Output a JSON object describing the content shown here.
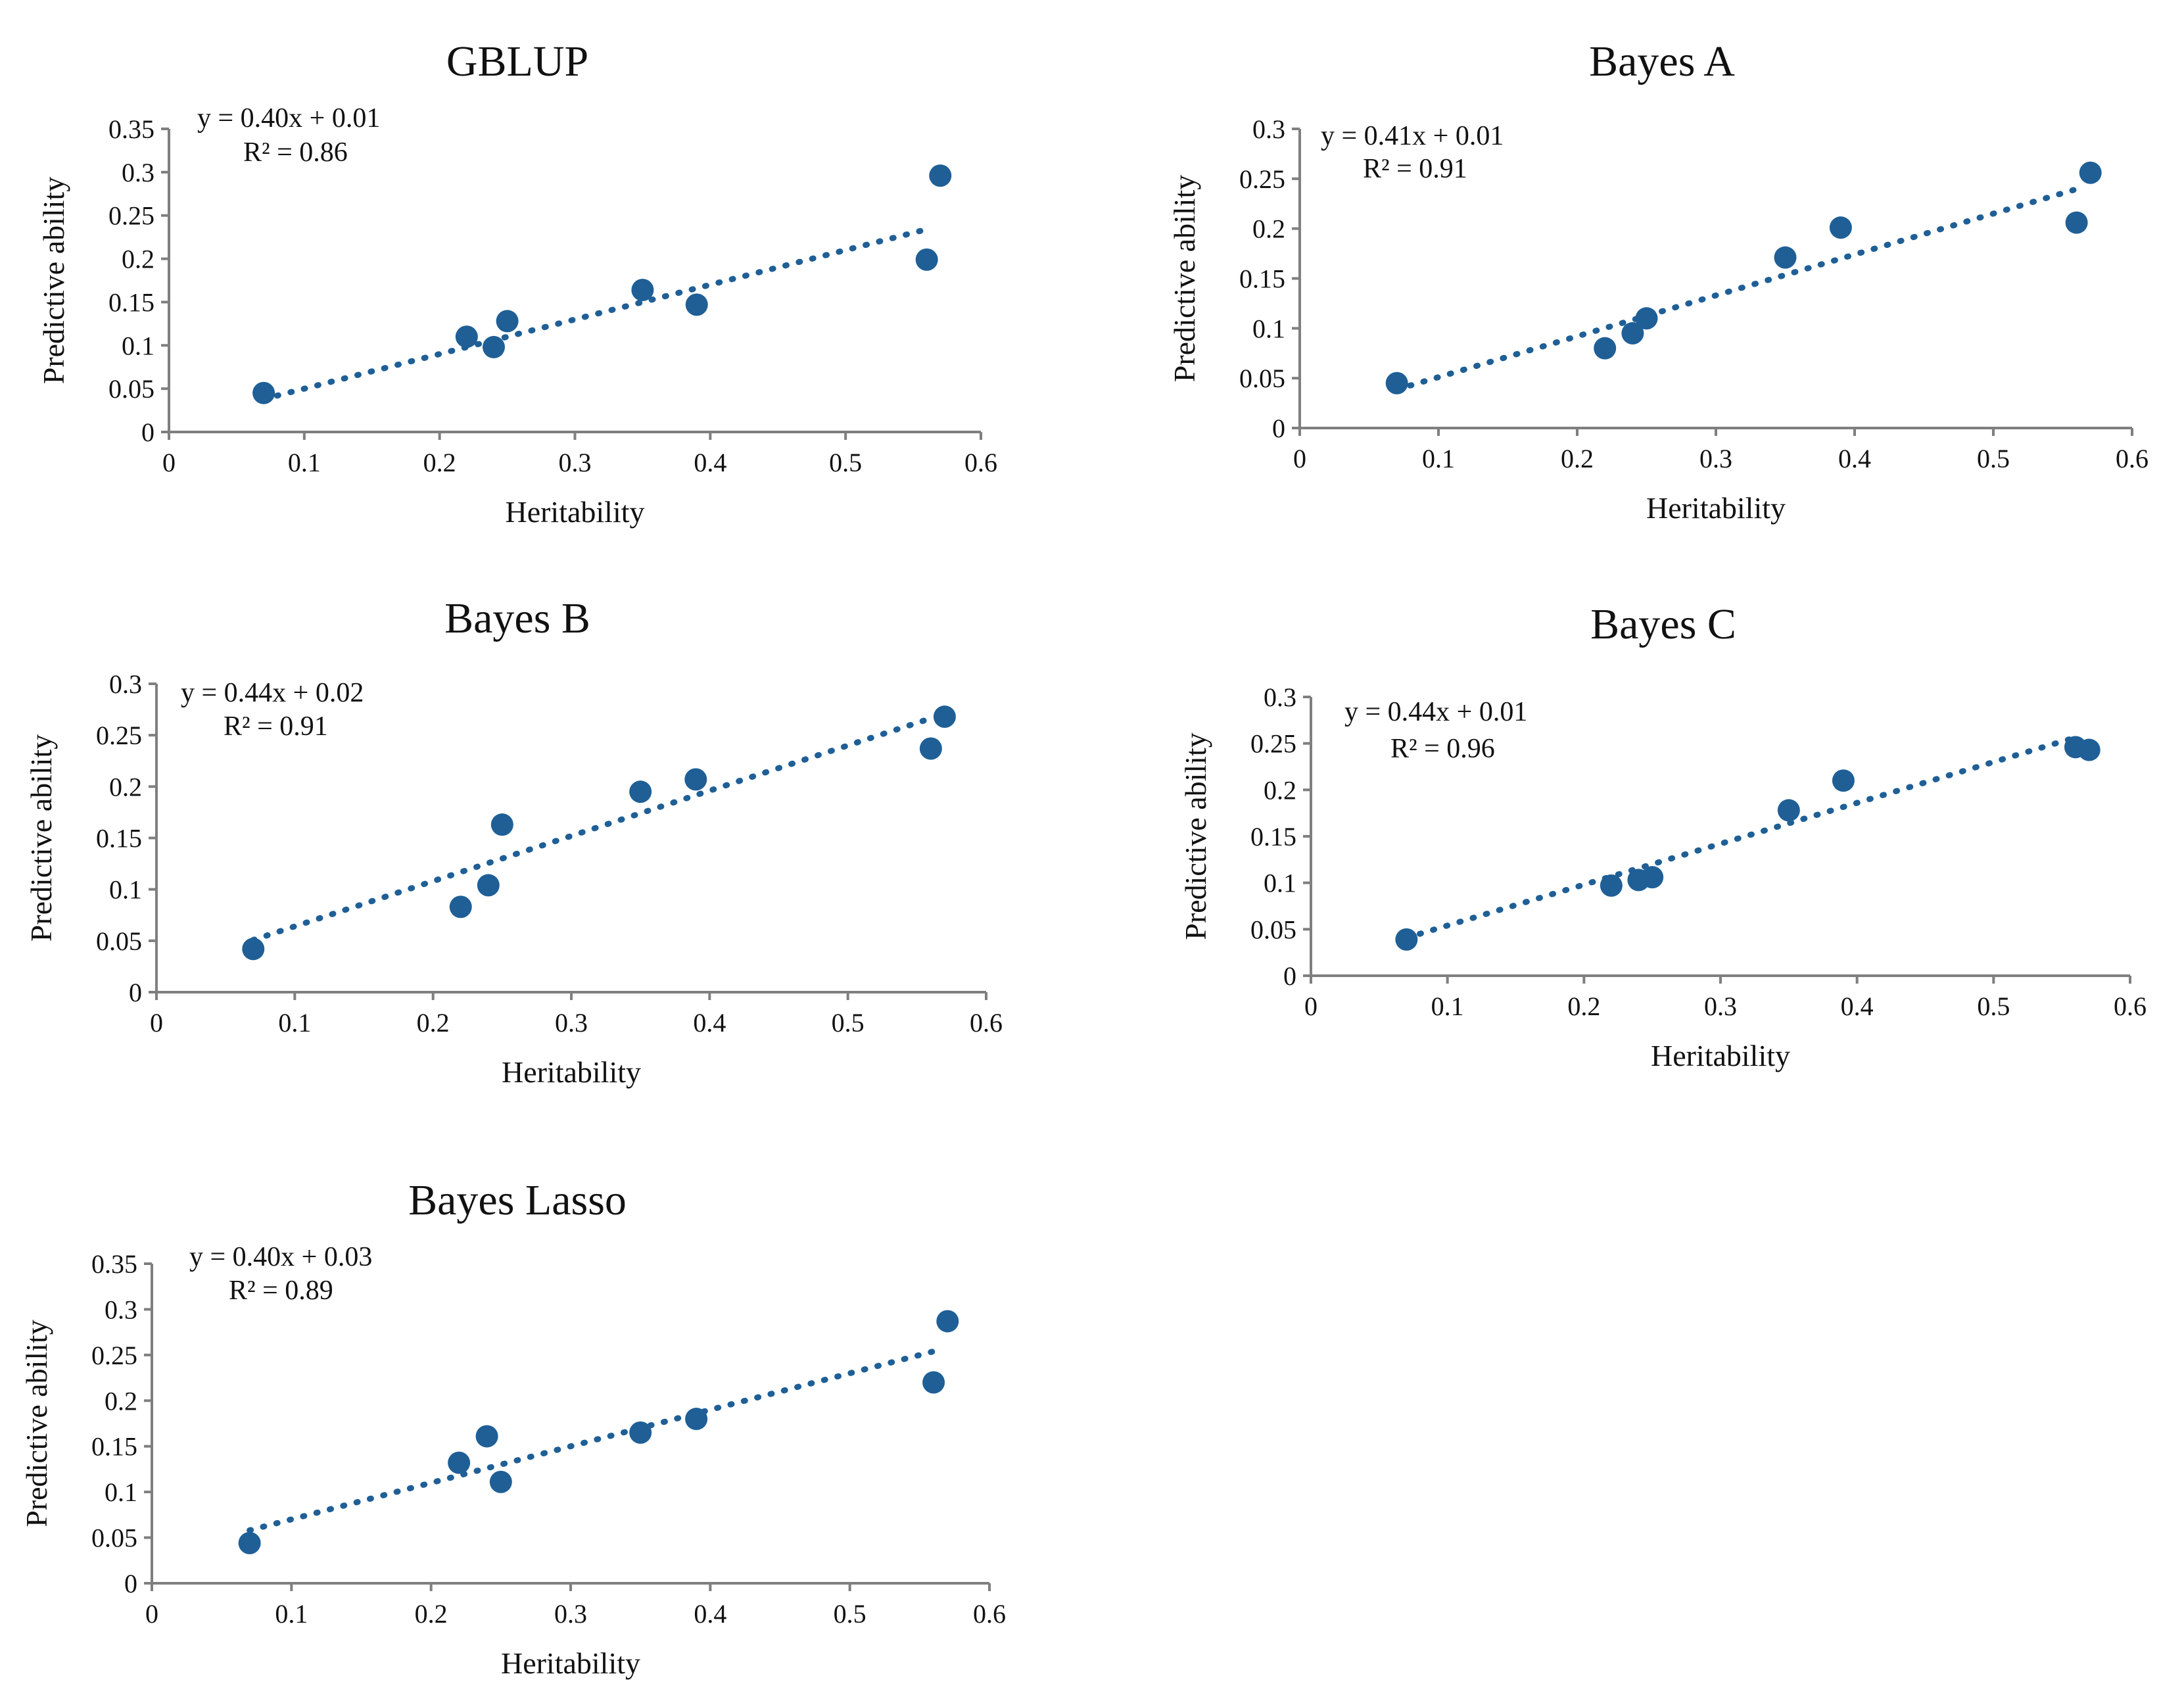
{
  "chart_data": [
    {
      "type": "scatter",
      "title": "GBLUP",
      "xlabel": "Heritability",
      "ylabel": "Predictive ability",
      "xlim": [
        0,
        0.6
      ],
      "ylim": [
        0,
        0.35
      ],
      "xticks": [
        "0",
        "0.1",
        "0.2",
        "0.3",
        "0.4",
        "0.5",
        "0.6"
      ],
      "yticks": [
        "0",
        "0.05",
        "0.1",
        "0.15",
        "0.2",
        "0.25",
        "0.3",
        "0.35"
      ],
      "points": [
        {
          "x": 0.07,
          "y": 0.045
        },
        {
          "x": 0.22,
          "y": 0.11
        },
        {
          "x": 0.24,
          "y": 0.098
        },
        {
          "x": 0.25,
          "y": 0.128
        },
        {
          "x": 0.35,
          "y": 0.164
        },
        {
          "x": 0.39,
          "y": 0.147
        },
        {
          "x": 0.56,
          "y": 0.199
        },
        {
          "x": 0.57,
          "y": 0.296
        }
      ],
      "trendline": {
        "slope": 0.4,
        "intercept": 0.01,
        "x_range": [
          0.07,
          0.56
        ]
      },
      "equation": "y = 0.40x + 0.01",
      "r_squared": "R² = 0.86"
    },
    {
      "type": "scatter",
      "title": "Bayes A",
      "xlabel": "Heritability",
      "ylabel": "Predictive ability",
      "xlim": [
        0,
        0.6
      ],
      "ylim": [
        0,
        0.3
      ],
      "xticks": [
        "0",
        "0.1",
        "0.2",
        "0.3",
        "0.4",
        "0.5",
        "0.6"
      ],
      "yticks": [
        "0",
        "0.05",
        "0.1",
        "0.15",
        "0.2",
        "0.25",
        "0.3"
      ],
      "points": [
        {
          "x": 0.07,
          "y": 0.045
        },
        {
          "x": 0.22,
          "y": 0.08
        },
        {
          "x": 0.24,
          "y": 0.095
        },
        {
          "x": 0.25,
          "y": 0.11
        },
        {
          "x": 0.35,
          "y": 0.171
        },
        {
          "x": 0.39,
          "y": 0.201
        },
        {
          "x": 0.56,
          "y": 0.206
        },
        {
          "x": 0.57,
          "y": 0.256
        }
      ],
      "trendline": {
        "slope": 0.41,
        "intercept": 0.01,
        "x_range": [
          0.07,
          0.56
        ]
      },
      "equation": "y = 0.41x + 0.01",
      "r_squared": "R² = 0.91"
    },
    {
      "type": "scatter",
      "title": "Bayes B",
      "xlabel": "Heritability",
      "ylabel": "Predictive ability",
      "xlim": [
        0,
        0.6
      ],
      "ylim": [
        0,
        0.3
      ],
      "xticks": [
        "0",
        "0.1",
        "0.2",
        "0.3",
        "0.4",
        "0.5",
        "0.6"
      ],
      "yticks": [
        "0",
        "0.05",
        "0.1",
        "0.15",
        "0.2",
        "0.25",
        "0.3"
      ],
      "points": [
        {
          "x": 0.07,
          "y": 0.042
        },
        {
          "x": 0.22,
          "y": 0.083
        },
        {
          "x": 0.24,
          "y": 0.104
        },
        {
          "x": 0.25,
          "y": 0.163
        },
        {
          "x": 0.35,
          "y": 0.195
        },
        {
          "x": 0.39,
          "y": 0.207
        },
        {
          "x": 0.56,
          "y": 0.237
        },
        {
          "x": 0.57,
          "y": 0.268
        }
      ],
      "trendline": {
        "slope": 0.44,
        "intercept": 0.02,
        "x_range": [
          0.07,
          0.56
        ]
      },
      "equation": "y = 0.44x + 0.02",
      "r_squared": "R² = 0.91"
    },
    {
      "type": "scatter",
      "title": "Bayes C",
      "xlabel": "Heritability",
      "ylabel": "Predictive ability",
      "xlim": [
        0,
        0.6
      ],
      "ylim": [
        0,
        0.3
      ],
      "xticks": [
        "0",
        "0.1",
        "0.2",
        "0.3",
        "0.4",
        "0.5",
        "0.6"
      ],
      "yticks": [
        "0",
        "0.05",
        "0.1",
        "0.15",
        "0.2",
        "0.25",
        "0.3"
      ],
      "points": [
        {
          "x": 0.07,
          "y": 0.039
        },
        {
          "x": 0.22,
          "y": 0.097
        },
        {
          "x": 0.24,
          "y": 0.103
        },
        {
          "x": 0.25,
          "y": 0.106
        },
        {
          "x": 0.35,
          "y": 0.178
        },
        {
          "x": 0.39,
          "y": 0.21
        },
        {
          "x": 0.56,
          "y": 0.246
        },
        {
          "x": 0.57,
          "y": 0.243
        }
      ],
      "trendline": {
        "slope": 0.44,
        "intercept": 0.01,
        "x_range": [
          0.07,
          0.56
        ]
      },
      "equation": "y = 0.44x + 0.01",
      "r_squared": "R² = 0.96"
    },
    {
      "type": "scatter",
      "title": "Bayes Lasso",
      "xlabel": "Heritability",
      "ylabel": "Predictive ability",
      "xlim": [
        0,
        0.6
      ],
      "ylim": [
        0,
        0.35
      ],
      "xticks": [
        "0",
        "0.1",
        "0.2",
        "0.3",
        "0.4",
        "0.5",
        "0.6"
      ],
      "yticks": [
        "0",
        "0.05",
        "0.1",
        "0.15",
        "0.2",
        "0.25",
        "0.3",
        "0.35"
      ],
      "points": [
        {
          "x": 0.07,
          "y": 0.044
        },
        {
          "x": 0.22,
          "y": 0.132
        },
        {
          "x": 0.24,
          "y": 0.161
        },
        {
          "x": 0.25,
          "y": 0.111
        },
        {
          "x": 0.35,
          "y": 0.165
        },
        {
          "x": 0.39,
          "y": 0.18
        },
        {
          "x": 0.56,
          "y": 0.22
        },
        {
          "x": 0.57,
          "y": 0.287
        }
      ],
      "trendline": {
        "slope": 0.4,
        "intercept": 0.03,
        "x_range": [
          0.07,
          0.56
        ]
      },
      "equation": "y = 0.40x + 0.03",
      "r_squared": "R² = 0.89"
    }
  ],
  "colors": {
    "marker": "#1f5f96",
    "axis": "#7f7f7f",
    "text": "#111111"
  }
}
